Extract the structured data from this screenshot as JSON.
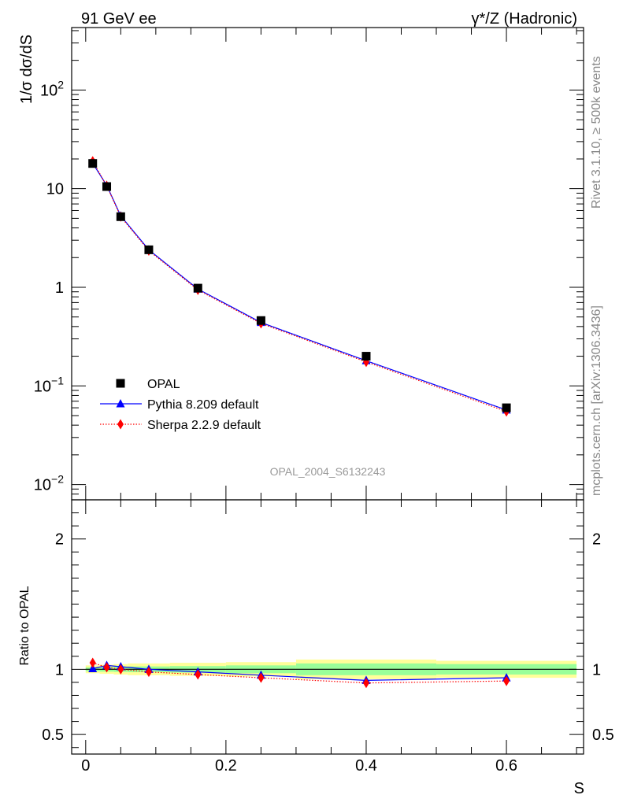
{
  "header": {
    "left_label": "91 GeV ee",
    "right_label": "γ*/Z (Hadronic)"
  },
  "side_labels": {
    "rivet": "Rivet 3.1.10, ≥ 500k events",
    "mcplots": "mcplots.cern.ch [arXiv:1306.3436]"
  },
  "watermark": "OPAL_2004_S6132243",
  "chart_data": [
    {
      "panel": "main",
      "type": "scatter",
      "yscale": "log",
      "ylabel": "1/σ dσ/dS",
      "xlabel": "S",
      "xlim": [
        -0.02,
        0.71
      ],
      "ylim": [
        0.007,
        430
      ],
      "y_tick_labels": [
        "10^-2",
        "10^-1",
        "1",
        "10",
        "10^2"
      ],
      "legend_position": "middle-left",
      "x": [
        0.01,
        0.03,
        0.05,
        0.09,
        0.16,
        0.25,
        0.4,
        0.6
      ],
      "series": [
        {
          "name": "OPAL",
          "marker": "square",
          "color": "#000000",
          "values": [
            18.0,
            10.5,
            5.2,
            2.4,
            0.98,
            0.46,
            0.2,
            0.06
          ]
        },
        {
          "name": "Pythia 8.209 default",
          "marker": "triangle",
          "line": "solid",
          "color": "#0000ff",
          "values": [
            18.1,
            10.8,
            5.3,
            2.4,
            0.96,
            0.44,
            0.18,
            0.057
          ]
        },
        {
          "name": "Sherpa 2.2.9 default",
          "marker": "diamond",
          "line": "dotted",
          "color": "#ff0000",
          "values": [
            19.0,
            10.7,
            5.2,
            2.35,
            0.94,
            0.43,
            0.175,
            0.055
          ]
        }
      ]
    },
    {
      "panel": "ratio",
      "type": "line",
      "ylabel": "Ratio to OPAL",
      "xlabel": "S",
      "xlim": [
        -0.02,
        0.71
      ],
      "ylim": [
        0.35,
        2.3
      ],
      "y_tick_labels": [
        "0.5",
        "1",
        "2"
      ],
      "x_tick_labels": [
        "0",
        "0.2",
        "0.4",
        "0.6"
      ],
      "x": [
        0.01,
        0.03,
        0.05,
        0.09,
        0.16,
        0.25,
        0.4,
        0.6
      ],
      "bands": {
        "bin_edges": [
          0.0,
          0.02,
          0.04,
          0.06,
          0.12,
          0.2,
          0.3,
          0.5,
          0.7
        ],
        "stat_syst_half_width": [
          0.03,
          0.035,
          0.04,
          0.045,
          0.05,
          0.055,
          0.075,
          0.065
        ],
        "stat_half_width": [
          0.015,
          0.018,
          0.02,
          0.022,
          0.025,
          0.03,
          0.045,
          0.04
        ],
        "outer_color": "#ffff99",
        "inner_color": "#99ff99"
      },
      "series": [
        {
          "name": "Pythia 8.209 default",
          "marker": "triangle",
          "line": "solid",
          "color": "#0000ff",
          "values": [
            1.005,
            1.03,
            1.02,
            1.0,
            0.98,
            0.955,
            0.915,
            0.935
          ]
        },
        {
          "name": "Sherpa 2.2.9 default",
          "marker": "diamond",
          "line": "dotted",
          "color": "#ff0000",
          "values": [
            1.05,
            1.015,
            1.0,
            0.98,
            0.96,
            0.935,
            0.895,
            0.91
          ]
        }
      ]
    }
  ]
}
